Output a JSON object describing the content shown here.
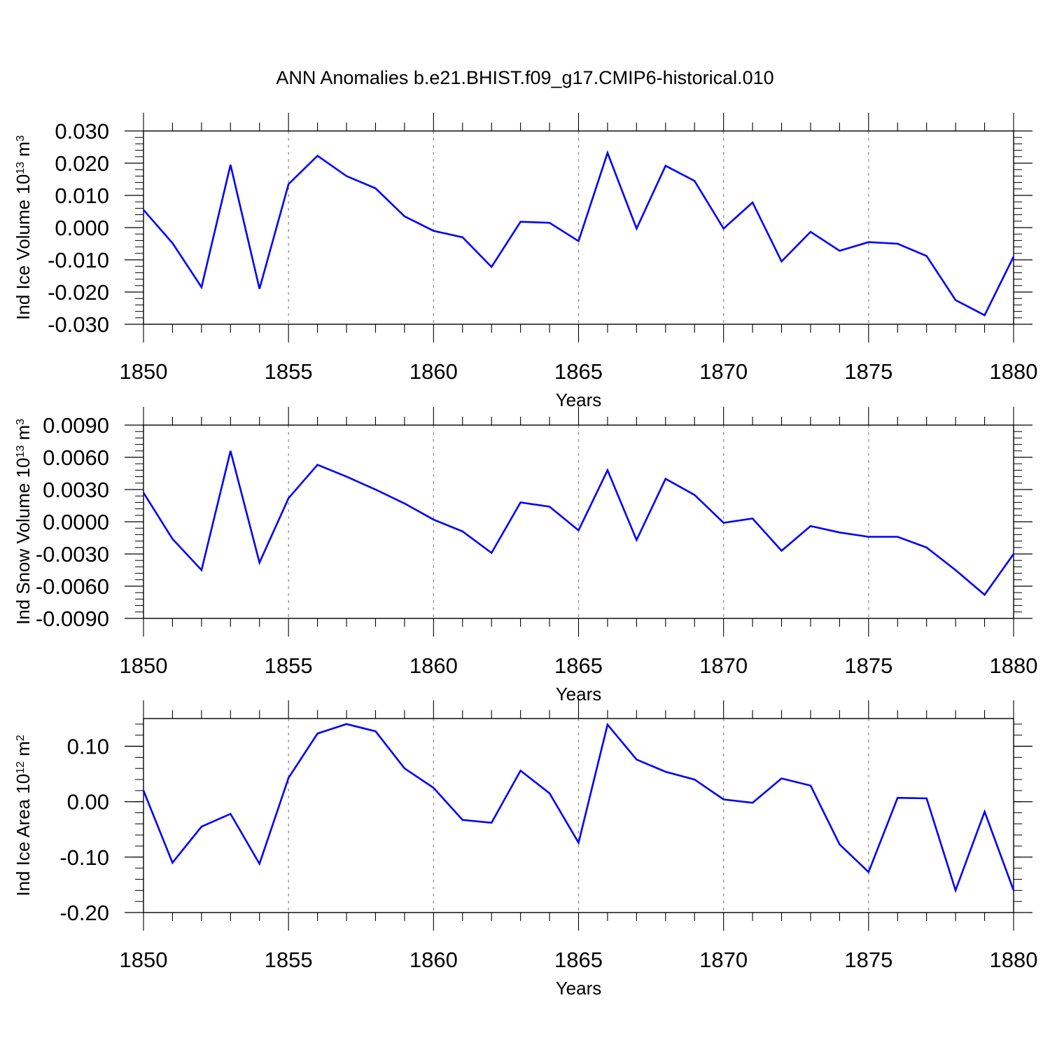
{
  "title": "ANN Anomalies b.e21.BHIST.f09_g17.CMIP6-historical.010",
  "chart_data": [
    {
      "type": "line",
      "title": "",
      "xlabel": "Years",
      "ylabel": "Ind Ice Volume",
      "yunit_base": "10",
      "yunit_exp": "13",
      "yunit_dim": "m",
      "yunit_dim_exp": "3",
      "xlim": [
        1850,
        1880
      ],
      "ylim": [
        -0.03,
        0.03
      ],
      "xticks": [
        1850,
        1855,
        1860,
        1865,
        1870,
        1875,
        1880
      ],
      "yticks": [
        0.03,
        0.02,
        0.01,
        0.0,
        -0.01,
        -0.02,
        -0.03
      ],
      "ytick_labels": [
        "0.030",
        "0.020",
        "0.010",
        "0.000",
        "-0.010",
        "-0.020",
        "-0.030"
      ],
      "grid": "dashed vertical at major x ticks",
      "series": [
        {
          "name": "Ind Ice Volume",
          "color": "#0000ff",
          "x": [
            1850,
            1851,
            1852,
            1853,
            1854,
            1855,
            1856,
            1857,
            1858,
            1859,
            1860,
            1861,
            1862,
            1863,
            1864,
            1865,
            1866,
            1867,
            1868,
            1869,
            1870,
            1871,
            1872,
            1873,
            1874,
            1875,
            1876,
            1877,
            1878,
            1879,
            1880
          ],
          "values": [
            0.0055,
            -0.0048,
            -0.0185,
            0.0195,
            -0.019,
            0.0135,
            0.0223,
            0.016,
            0.0122,
            0.0035,
            -0.001,
            -0.003,
            -0.0122,
            0.0018,
            0.0015,
            -0.0042,
            0.0232,
            -0.0003,
            0.0192,
            0.0145,
            -0.0003,
            0.0078,
            -0.0105,
            -0.0013,
            -0.0072,
            -0.0045,
            -0.005,
            -0.0088,
            -0.0225,
            -0.0272,
            -0.009
          ]
        }
      ]
    },
    {
      "type": "line",
      "title": "",
      "xlabel": "Years",
      "ylabel": "Ind Snow Volume",
      "yunit_base": "10",
      "yunit_exp": "13",
      "yunit_dim": "m",
      "yunit_dim_exp": "3",
      "xlim": [
        1850,
        1880
      ],
      "ylim": [
        -0.009,
        0.009
      ],
      "xticks": [
        1850,
        1855,
        1860,
        1865,
        1870,
        1875,
        1880
      ],
      "yticks": [
        0.009,
        0.006,
        0.003,
        0.0,
        -0.003,
        -0.006,
        -0.009
      ],
      "ytick_labels": [
        "0.0090",
        "0.0060",
        "0.0030",
        "0.0000",
        "-0.0030",
        "-0.0060",
        "-0.0090"
      ],
      "grid": "dashed vertical at major x ticks",
      "series": [
        {
          "name": "Ind Snow Volume",
          "color": "#0000ff",
          "x": [
            1850,
            1851,
            1852,
            1853,
            1854,
            1855,
            1856,
            1857,
            1858,
            1859,
            1860,
            1861,
            1862,
            1863,
            1864,
            1865,
            1866,
            1867,
            1868,
            1869,
            1870,
            1871,
            1872,
            1873,
            1874,
            1875,
            1876,
            1877,
            1878,
            1879,
            1880
          ],
          "values": [
            0.0027,
            -0.0016,
            -0.0045,
            0.0066,
            -0.0038,
            0.0022,
            0.0053,
            0.0042,
            0.003,
            0.0017,
            0.0002,
            -0.0009,
            -0.0029,
            0.0018,
            0.0014,
            -0.0008,
            0.0048,
            -0.0017,
            0.004,
            0.0025,
            -0.0001,
            0.0003,
            -0.0027,
            -0.0004,
            -0.001,
            -0.0014,
            -0.0014,
            -0.0024,
            -0.0045,
            -0.0068,
            -0.003
          ]
        }
      ]
    },
    {
      "type": "line",
      "title": "",
      "xlabel": "Years",
      "ylabel": "Ind Ice Area",
      "yunit_base": "10",
      "yunit_exp": "12",
      "yunit_dim": "m",
      "yunit_dim_exp": "2",
      "xlim": [
        1850,
        1880
      ],
      "ylim": [
        -0.2,
        0.15
      ],
      "xticks": [
        1850,
        1855,
        1860,
        1865,
        1870,
        1875,
        1880
      ],
      "yticks": [
        0.1,
        0.0,
        -0.1,
        -0.2
      ],
      "ytick_labels": [
        "0.10",
        "0.00",
        "-0.10",
        "-0.20"
      ],
      "grid": "dashed vertical at major x ticks",
      "series": [
        {
          "name": "Ind Ice Area",
          "color": "#0000ff",
          "x": [
            1850,
            1851,
            1852,
            1853,
            1854,
            1855,
            1856,
            1857,
            1858,
            1859,
            1860,
            1861,
            1862,
            1863,
            1864,
            1865,
            1866,
            1867,
            1868,
            1869,
            1870,
            1871,
            1872,
            1873,
            1874,
            1875,
            1876,
            1877,
            1878,
            1879,
            1880
          ],
          "values": [
            0.02,
            -0.11,
            -0.045,
            -0.022,
            -0.112,
            0.043,
            0.123,
            0.14,
            0.127,
            0.06,
            0.025,
            -0.033,
            -0.038,
            0.056,
            0.015,
            -0.074,
            0.139,
            0.076,
            0.054,
            0.04,
            0.004,
            -0.002,
            0.042,
            0.029,
            -0.077,
            -0.127,
            0.007,
            0.006,
            -0.16,
            -0.018,
            -0.16
          ]
        }
      ]
    }
  ]
}
